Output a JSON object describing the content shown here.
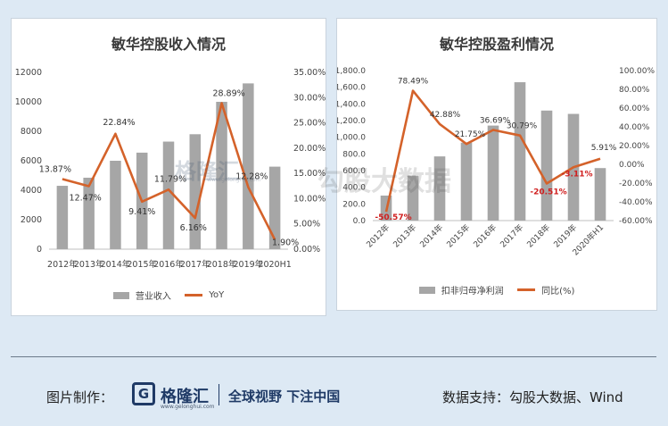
{
  "chart_data": [
    {
      "type": "bar",
      "title": "敏华控股收入情况",
      "categories": [
        "2012年",
        "2013年",
        "2014年",
        "2015年",
        "2016年",
        "2017年",
        "2018年",
        "2019年",
        "2020H1"
      ],
      "series": [
        {
          "name": "营业收入",
          "type": "bar",
          "axis": "left",
          "color": "#a6a6a6",
          "values": [
            4300,
            4850,
            6000,
            6550,
            7300,
            7800,
            10000,
            11250,
            5600
          ]
        },
        {
          "name": "YoY",
          "type": "line",
          "axis": "right",
          "color": "#d4622a",
          "values": [
            13.87,
            12.47,
            22.84,
            9.41,
            11.79,
            6.16,
            28.89,
            12.28,
            1.9
          ],
          "labels": [
            "13.87%",
            "12.47%",
            "22.84%",
            "9.41%",
            "11.79%",
            "6.16%",
            "28.89%",
            "12.28%",
            "1.90%"
          ]
        }
      ],
      "y_left": {
        "min": 0,
        "max": 12000,
        "step": 2000,
        "ticks": [
          "0",
          "2000",
          "4000",
          "6000",
          "8000",
          "10000",
          "12000"
        ]
      },
      "y_right": {
        "min": 0,
        "max": 35,
        "step": 5,
        "ticks": [
          "0.00%",
          "5.00%",
          "10.00%",
          "15.00%",
          "20.00%",
          "25.00%",
          "30.00%",
          "35.00%"
        ]
      },
      "grid": false,
      "legend": "bottom"
    },
    {
      "type": "bar",
      "title": "敏华控股盈利情况",
      "categories": [
        "2012年",
        "2013年",
        "2014年",
        "2015年",
        "2016年",
        "2017年",
        "2018年",
        "2019年",
        "2020年H1"
      ],
      "series": [
        {
          "name": "扣非归母净利润",
          "type": "bar",
          "axis": "left",
          "color": "#a6a6a6",
          "values": [
            300,
            540,
            770,
            935,
            1140,
            1660,
            1320,
            1280,
            630
          ]
        },
        {
          "name": "同比(%)",
          "type": "line",
          "axis": "right",
          "color": "#d4622a",
          "values": [
            -50.57,
            78.49,
            42.88,
            21.75,
            36.69,
            30.79,
            -20.51,
            -3.11,
            5.91
          ],
          "labels": [
            "-50.57%",
            "78.49%",
            "42.88%",
            "21.75%",
            "36.69%",
            "30.79%",
            "-20.51%",
            "-3.11%",
            "5.91%"
          ]
        }
      ],
      "y_left": {
        "min": 0,
        "max": 1800,
        "step": 200,
        "ticks": [
          "0.0",
          "200.0",
          "400.0",
          "600.0",
          "800.0",
          "1,000.0",
          "1,200.0",
          "1,400.0",
          "1,600.0",
          "1,800.0"
        ]
      },
      "y_right": {
        "min": -60,
        "max": 100,
        "step": 20,
        "ticks": [
          "-60.00%",
          "-40.00%",
          "-20.00%",
          "0.00%",
          "20.00%",
          "40.00%",
          "60.00%",
          "80.00%",
          "100.00%"
        ]
      },
      "grid": false,
      "legend": "bottom"
    }
  ],
  "watermarks": {
    "logo_text": "格隆汇",
    "logo_url": "www.gelonghui.com",
    "gugu": "勾股大数据"
  },
  "footer": {
    "made_by": "图片制作：",
    "logo_mark": "G",
    "logo_name": "格隆汇",
    "logo_url": "www.gelonghui.com",
    "slogan": "全球视野 下注中国",
    "source": "数据支持：勾股大数据、Wind"
  }
}
